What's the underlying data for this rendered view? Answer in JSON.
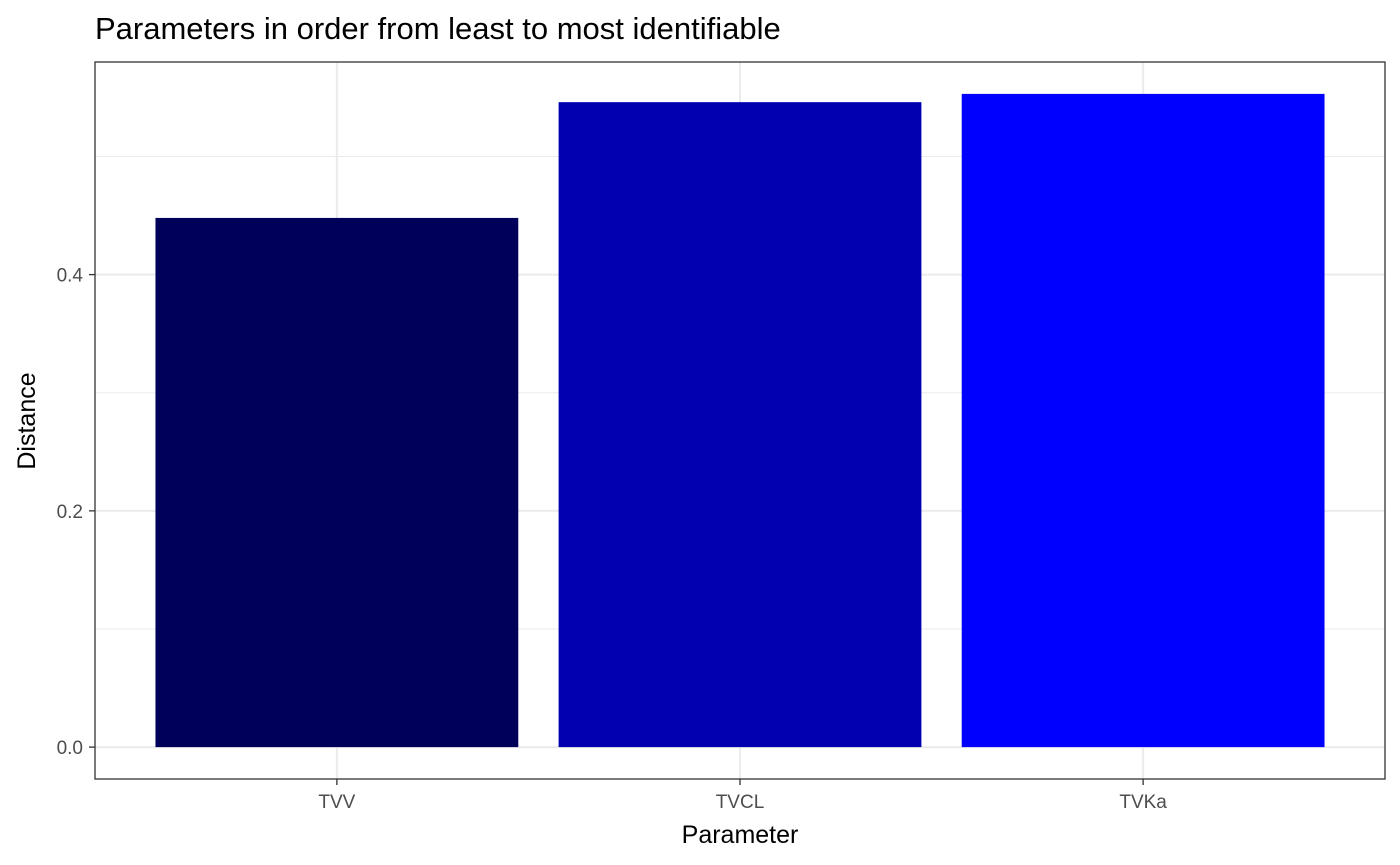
{
  "chart_data": {
    "type": "bar",
    "title": "Parameters in order from least to most identifiable",
    "xlabel": "Parameter",
    "ylabel": "Distance",
    "categories": [
      "TVV",
      "TVCL",
      "TVKa"
    ],
    "values": [
      0.448,
      0.546,
      0.553
    ],
    "colors": [
      "#00005a",
      "#0000b0",
      "#0000ff"
    ],
    "ylim": [
      -0.027,
      0.58
    ],
    "y_ticks": [
      0.0,
      0.2,
      0.4
    ],
    "y_tick_labels": [
      "0.0",
      "0.2",
      "0.4"
    ],
    "y_minor_ticks": [
      0.1,
      0.3,
      0.5
    ],
    "grid": true,
    "legend": "none"
  }
}
